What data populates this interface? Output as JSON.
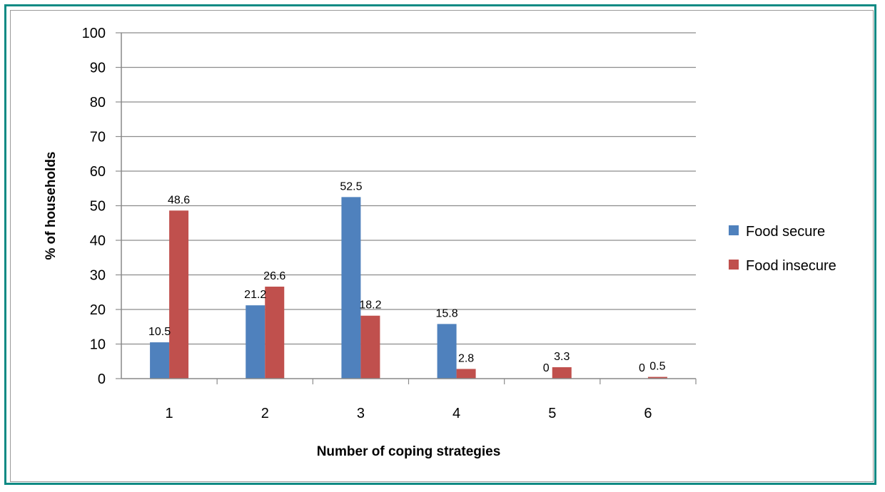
{
  "chart_data": {
    "type": "bar",
    "categories": [
      "1",
      "2",
      "3",
      "4",
      "5",
      "6"
    ],
    "series": [
      {
        "name": "Food secure",
        "color": "#4f81bd",
        "values": [
          10.5,
          21.2,
          52.5,
          15.8,
          0,
          0
        ]
      },
      {
        "name": "Food insecure",
        "color": "#c0504d",
        "values": [
          48.6,
          26.6,
          18.2,
          2.8,
          3.3,
          0.5
        ]
      }
    ],
    "xlabel": "Number of coping strategies",
    "ylabel": "% of households",
    "ylim": [
      0,
      100
    ],
    "yticks": [
      0,
      10,
      20,
      30,
      40,
      50,
      60,
      70,
      80,
      90,
      100
    ],
    "grid": true,
    "legend": "right"
  }
}
